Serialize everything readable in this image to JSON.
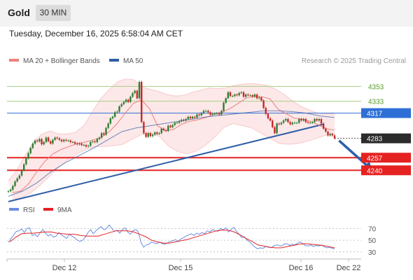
{
  "header": {
    "symbol": "Gold",
    "timeframe": "30 MIN",
    "datetime": "Tuesday, December 16, 2025 6:58:04 AM CET"
  },
  "colors": {
    "bollinger": "#f07f7f",
    "ma50": "#2e5ea8",
    "green_levels": "#a7cf85",
    "green_text": "#5a9a2a",
    "red_levels": "#e52222",
    "blue_level": "#2e6fd6",
    "current_price": "#2b2b2b",
    "candle_up": "#2e7d32",
    "candle_down": "#c62828",
    "arrow": "#2e5ea8",
    "rsi": "#6a8fe0",
    "rsi_ma": "#e52222"
  },
  "chart_data": [
    {
      "type": "line",
      "title": "",
      "legend": [
        {
          "name": "MA 20 + Bollinger Bands",
          "color": "#f07f7f"
        },
        {
          "name": "MA 50",
          "color": "#2e5ea8"
        }
      ],
      "legend_position": "top-left",
      "credit": "Research © 2025 Trading Central",
      "x_labels": [
        "Dec 12",
        "Dec 15",
        "Dec 16",
        "Dec 22"
      ],
      "ylim": [
        4196,
        4375
      ],
      "price_levels": [
        {
          "label": "4353",
          "value": 4353,
          "kind": "resistance"
        },
        {
          "label": "4333",
          "value": 4333,
          "kind": "resistance"
        },
        {
          "label": "4317",
          "value": 4317,
          "kind": "pivot"
        },
        {
          "label": "4283",
          "value": 4283,
          "kind": "current"
        },
        {
          "label": "4257",
          "value": 4257,
          "kind": "support"
        },
        {
          "label": "4240",
          "value": 4240,
          "kind": "support"
        }
      ],
      "trendline": {
        "from": [
          0,
          4196
        ],
        "to": [
          142,
          4302
        ]
      },
      "forecast_arrow": {
        "from": [
          149,
          4280
        ],
        "to": [
          164,
          4240
        ]
      },
      "series": [
        {
          "name": "Price",
          "values": [
            4212,
            4214,
            4219,
            4225,
            4229,
            4233,
            4240,
            4248,
            4256,
            4263,
            4270,
            4276,
            4280,
            4279,
            4282,
            4275,
            4278,
            4284,
            4279,
            4276,
            4281,
            4284,
            4283,
            4281,
            4279,
            4281,
            4280,
            4280,
            4278,
            4278,
            4276,
            4275,
            4276,
            4274,
            4274,
            4272,
            4273,
            4278,
            4279,
            4278,
            4282,
            4284,
            4290,
            4288,
            4297,
            4303,
            4310,
            4312,
            4318,
            4319,
            4326,
            4329,
            4332,
            4335,
            4332,
            4339,
            4344,
            4347,
            4337,
            4359,
            4305,
            4290,
            4285,
            4290,
            4286,
            4288,
            4291,
            4289,
            4290,
            4296,
            4294,
            4293,
            4300,
            4298,
            4301,
            4304,
            4304,
            4306,
            4308,
            4307,
            4309,
            4312,
            4310,
            4312,
            4311,
            4315,
            4314,
            4317,
            4320,
            4320,
            4318,
            4315,
            4316,
            4316,
            4317,
            4315,
            4320,
            4331,
            4337,
            4345,
            4340,
            4340,
            4342,
            4341,
            4344,
            4345,
            4339,
            4342,
            4341,
            4341,
            4339,
            4342,
            4337,
            4338,
            4334,
            4324,
            4316,
            4310,
            4307,
            4298,
            4290,
            4303,
            4302,
            4304,
            4307,
            4309,
            4305,
            4302,
            4304,
            4304,
            4304,
            4309,
            4307,
            4309,
            4305,
            4304,
            4304,
            4305,
            4309,
            4307,
            4309,
            4303,
            4296,
            4292,
            4287,
            4289,
            4287,
            4283
          ]
        },
        {
          "name": "MA 20",
          "values": [
            4210,
            4212,
            4222,
            4238,
            4252,
            4262,
            4268,
            4272,
            4276,
            4278,
            4281,
            4284,
            4292,
            4303,
            4317,
            4330,
            4335,
            4323,
            4300,
            4293,
            4295,
            4302,
            4306,
            4308,
            4311,
            4315,
            4318,
            4323,
            4330,
            4337,
            4340,
            4339,
            4336,
            4322,
            4316,
            4310,
            4309,
            4306,
            4301,
            4296,
            4294
          ]
        },
        {
          "name": "MA 50",
          "values": [
            4205,
            4212,
            4223,
            4238,
            4250,
            4260,
            4270,
            4281,
            4292,
            4297,
            4300,
            4303,
            4306,
            4309,
            4312,
            4314,
            4316,
            4318,
            4320,
            4320,
            4319,
            4317,
            4313,
            4311
          ]
        },
        {
          "name": "Bollinger upper",
          "values": [
            4226,
            4240,
            4260,
            4278,
            4289,
            4293,
            4289,
            4289,
            4291,
            4300,
            4318,
            4336,
            4348,
            4359,
            4363,
            4362,
            4352,
            4349,
            4346,
            4342,
            4340,
            4341,
            4345,
            4348,
            4351,
            4350,
            4351,
            4354,
            4356,
            4357,
            4356,
            4354,
            4349,
            4342,
            4333,
            4326,
            4321,
            4317,
            4316,
            4316
          ]
        },
        {
          "name": "Bollinger lower",
          "values": [
            4200,
            4203,
            4210,
            4220,
            4232,
            4244,
            4254,
            4262,
            4268,
            4272,
            4272,
            4273,
            4275,
            4282,
            4288,
            4290,
            4285,
            4272,
            4265,
            4262,
            4266,
            4274,
            4285,
            4298,
            4303,
            4300,
            4297,
            4290,
            4283,
            4276,
            4275,
            4276,
            4279,
            4283,
            4287,
            4289
          ]
        }
      ]
    },
    {
      "type": "line",
      "title": "",
      "legend": [
        {
          "name": "RSI",
          "color": "#6a8fe0"
        },
        {
          "name": "9MA",
          "color": "#e52222"
        }
      ],
      "legend_position": "top-left",
      "ylim": [
        25,
        80
      ],
      "y_ticks": [
        {
          "label": "70",
          "value": 70
        },
        {
          "label": "50",
          "value": 50
        },
        {
          "label": "30",
          "value": 30
        }
      ],
      "series": [
        {
          "name": "RSI",
          "values": [
            46,
            53,
            59,
            65,
            66,
            69,
            63,
            70,
            71,
            58,
            60,
            56,
            63,
            68,
            62,
            57,
            60,
            55,
            57,
            63,
            59,
            56,
            53,
            60,
            57,
            54,
            50,
            48,
            50,
            55,
            63,
            68,
            61,
            66,
            70,
            73,
            68,
            70,
            76,
            70,
            65,
            67,
            62,
            68,
            71,
            64,
            60,
            66,
            68,
            64,
            46,
            38,
            42,
            43,
            47,
            45,
            44,
            47,
            44,
            43,
            45,
            48,
            49,
            51,
            48,
            52,
            54,
            57,
            59,
            61,
            58,
            62,
            60,
            63,
            61,
            66,
            64,
            68,
            66,
            65,
            70,
            68,
            71,
            64,
            68,
            72,
            65,
            60,
            54,
            56,
            50,
            47,
            42,
            38,
            35,
            37,
            36,
            39,
            38,
            37,
            40,
            42,
            41,
            40,
            43,
            44,
            41,
            43,
            42,
            45,
            47,
            44,
            41,
            40,
            42,
            39,
            41,
            40,
            42,
            39,
            37,
            38,
            36,
            35
          ]
        },
        {
          "name": "9MA",
          "values": [
            47,
            55,
            61,
            62,
            62,
            63,
            64,
            64,
            62,
            61,
            60,
            60,
            58,
            57,
            57,
            57,
            60,
            63,
            66,
            66,
            66,
            64,
            60,
            56,
            50,
            47,
            45,
            45,
            47,
            49,
            51,
            54,
            57,
            60,
            63,
            66,
            67,
            67,
            64,
            59,
            53,
            48,
            42,
            40,
            38,
            37,
            37,
            39,
            41,
            43,
            44,
            43,
            42,
            41,
            39,
            37
          ]
        }
      ]
    }
  ]
}
